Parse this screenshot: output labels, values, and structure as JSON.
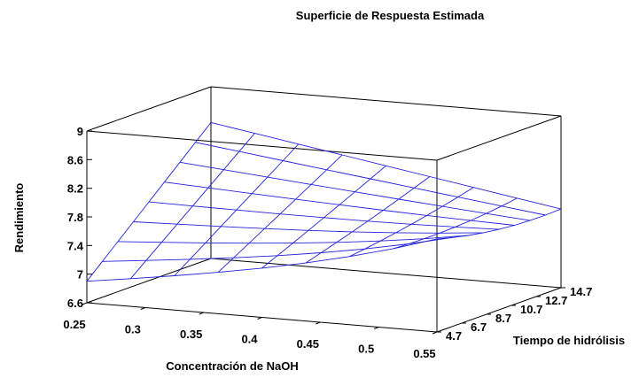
{
  "chart_data": {
    "type": "surface",
    "title": "Superficie de Respuesta Estimada",
    "xlabel": "Concentración de NaOH",
    "ylabel": "Tiempo de hidrólisis",
    "zlabel": "Rendimiento",
    "x_ticks": [
      "0.25",
      "0.3",
      "0.35",
      "0.4",
      "0.45",
      "0.5",
      "0.55"
    ],
    "y_ticks": [
      "4.7",
      "6.7",
      "8.7",
      "10.7",
      "12.7",
      "14.7"
    ],
    "z_ticks": [
      "6.6",
      "7",
      "7.4",
      "7.8",
      "8.2",
      "8.6",
      "9"
    ],
    "xlim": [
      0.25,
      0.55
    ],
    "ylim": [
      4.7,
      14.7
    ],
    "zlim": [
      6.6,
      9.0
    ],
    "grid_x": [
      0.25,
      0.2875,
      0.325,
      0.3625,
      0.4,
      0.4375,
      0.475,
      0.5125,
      0.55
    ],
    "grid_y": [
      4.7,
      5.95,
      7.2,
      8.45,
      9.7,
      10.95,
      12.2,
      13.45,
      14.7
    ],
    "z_corners": {
      "x0_y0": 6.9,
      "x0_y1": 8.5,
      "x1_y0": 7.6,
      "x1_y1": 7.7
    },
    "peak_near_x1_y0": 7.9,
    "surface_color": "#2222dd",
    "box_color": "#000000"
  }
}
